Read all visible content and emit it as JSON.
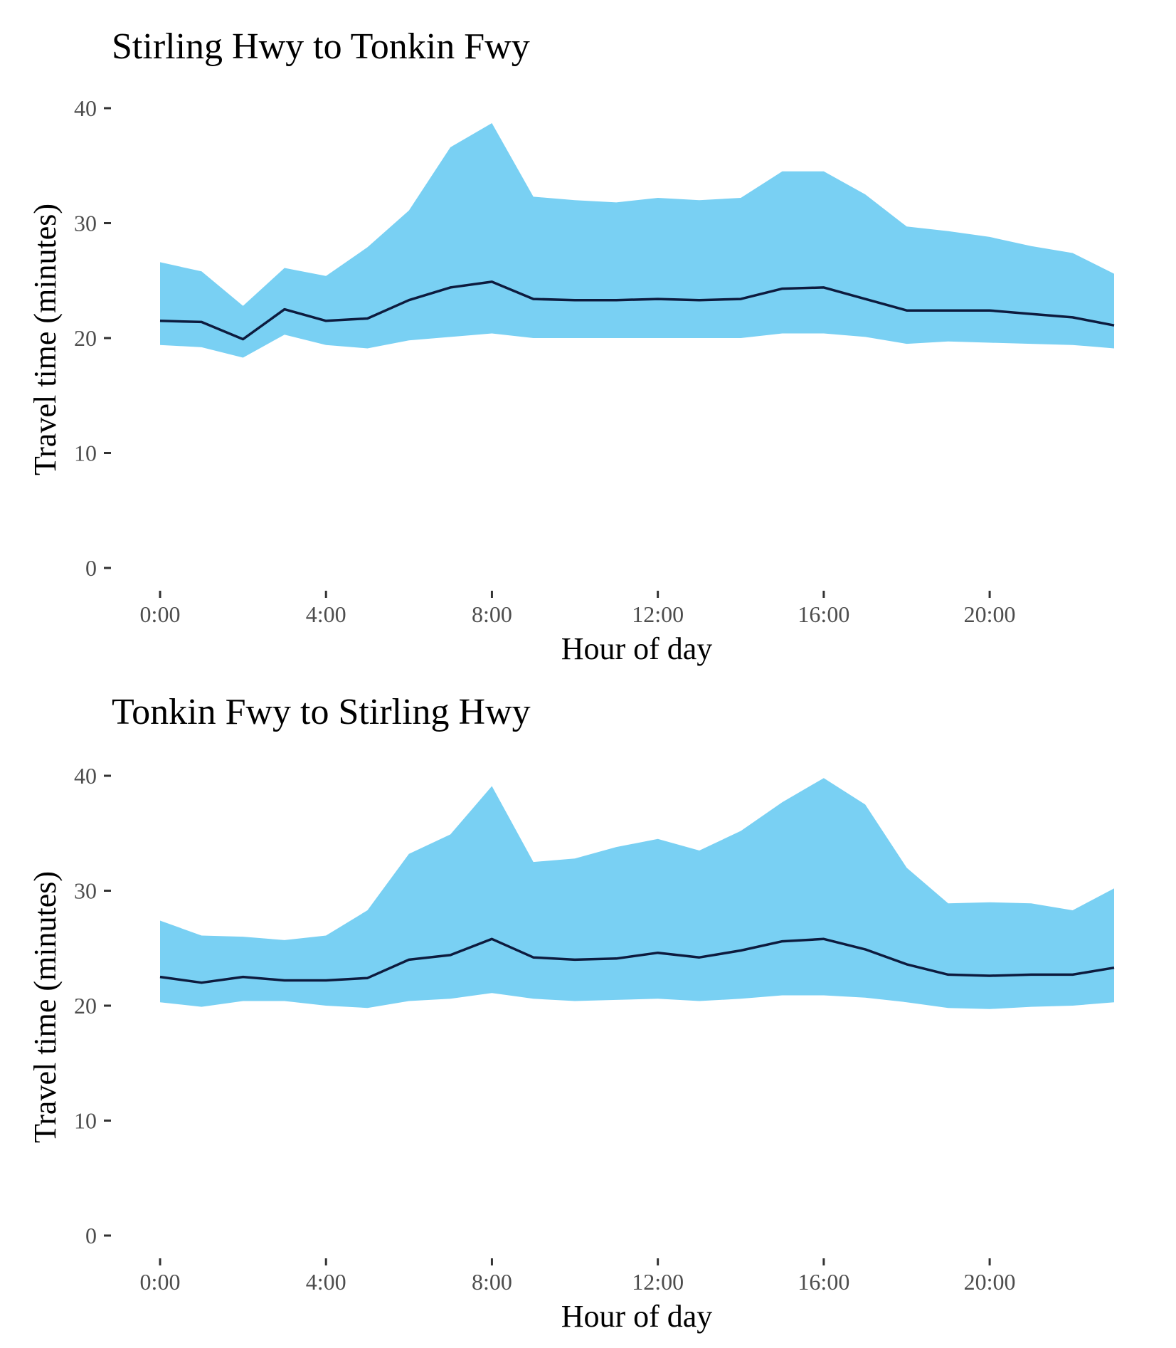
{
  "colors": {
    "band": "#79d0f3",
    "line": "#0d1b3e"
  },
  "chart_data": [
    {
      "type": "area",
      "title": "Stirling Hwy to Tonkin Fwy",
      "xlabel": "Hour of day",
      "ylabel": "Travel time (minutes)",
      "x": [
        0,
        1,
        2,
        3,
        4,
        5,
        6,
        7,
        8,
        9,
        10,
        11,
        12,
        13,
        14,
        15,
        16,
        17,
        18,
        19,
        20,
        21,
        22,
        23
      ],
      "xlim": [
        0,
        23
      ],
      "xticks": [
        0,
        4,
        8,
        12,
        16,
        20
      ],
      "xtick_labels": [
        "0:00",
        "4:00",
        "8:00",
        "12:00",
        "16:00",
        "20:00"
      ],
      "ylim": [
        0,
        40
      ],
      "yticks": [
        0,
        10,
        20,
        30,
        40
      ],
      "ytick_labels": [
        "0",
        "10",
        "20",
        "30",
        "40"
      ],
      "grid": false,
      "series": [
        {
          "role": "upper",
          "values": [
            26.6,
            25.8,
            22.8,
            26.1,
            25.4,
            27.9,
            31.1,
            36.6,
            38.7,
            32.3,
            32.0,
            31.8,
            32.2,
            32.0,
            32.2,
            34.5,
            34.5,
            32.5,
            29.7,
            29.3,
            28.8,
            28.0,
            27.4,
            25.6
          ]
        },
        {
          "role": "median",
          "values": [
            21.5,
            21.4,
            19.9,
            22.5,
            21.5,
            21.7,
            23.3,
            24.4,
            24.9,
            23.4,
            23.3,
            23.3,
            23.4,
            23.3,
            23.4,
            24.3,
            24.4,
            23.4,
            22.4,
            22.4,
            22.4,
            22.1,
            21.8,
            21.1
          ]
        },
        {
          "role": "lower",
          "values": [
            19.4,
            19.2,
            18.3,
            20.3,
            19.4,
            19.1,
            19.8,
            20.1,
            20.4,
            20.0,
            20.0,
            20.0,
            20.0,
            20.0,
            20.0,
            20.4,
            20.4,
            20.1,
            19.5,
            19.7,
            19.6,
            19.5,
            19.4,
            19.1
          ]
        }
      ]
    },
    {
      "type": "area",
      "title": "Tonkin Fwy to Stirling Hwy",
      "xlabel": "Hour of day",
      "ylabel": "Travel time (minutes)",
      "x": [
        0,
        1,
        2,
        3,
        4,
        5,
        6,
        7,
        8,
        9,
        10,
        11,
        12,
        13,
        14,
        15,
        16,
        17,
        18,
        19,
        20,
        21,
        22,
        23
      ],
      "xlim": [
        0,
        23
      ],
      "xticks": [
        0,
        4,
        8,
        12,
        16,
        20
      ],
      "xtick_labels": [
        "0:00",
        "4:00",
        "8:00",
        "12:00",
        "16:00",
        "20:00"
      ],
      "ylim": [
        0,
        40
      ],
      "yticks": [
        0,
        10,
        20,
        30,
        40
      ],
      "ytick_labels": [
        "0",
        "10",
        "20",
        "30",
        "40"
      ],
      "grid": false,
      "series": [
        {
          "role": "upper",
          "values": [
            27.4,
            26.1,
            26.0,
            25.7,
            26.1,
            28.3,
            33.2,
            34.9,
            39.1,
            32.5,
            32.8,
            33.8,
            34.5,
            33.5,
            35.2,
            37.7,
            39.8,
            37.5,
            32.0,
            28.9,
            29.0,
            28.9,
            28.3,
            30.2
          ]
        },
        {
          "role": "median",
          "values": [
            22.5,
            22.0,
            22.5,
            22.2,
            22.2,
            22.4,
            24.0,
            24.4,
            25.8,
            24.2,
            24.0,
            24.1,
            24.6,
            24.2,
            24.8,
            25.6,
            25.8,
            24.9,
            23.6,
            22.7,
            22.6,
            22.7,
            22.7,
            23.3
          ]
        },
        {
          "role": "lower",
          "values": [
            20.3,
            19.9,
            20.4,
            20.4,
            20.0,
            19.8,
            20.4,
            20.6,
            21.1,
            20.6,
            20.4,
            20.5,
            20.6,
            20.4,
            20.6,
            20.9,
            20.9,
            20.7,
            20.3,
            19.8,
            19.7,
            19.9,
            20.0,
            20.3
          ]
        }
      ]
    }
  ]
}
